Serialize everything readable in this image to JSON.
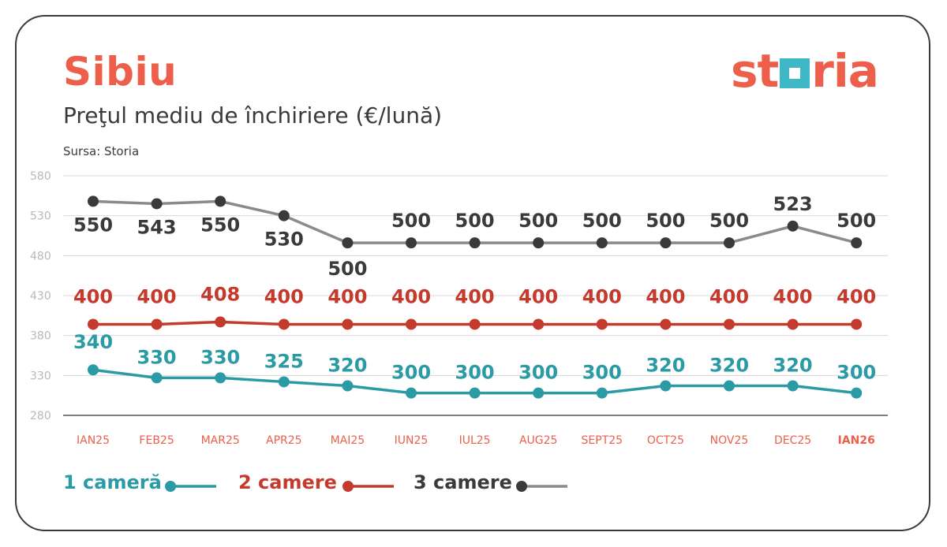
{
  "header": {
    "title": "Sibiu",
    "subtitle": "Preţul mediu de închiriere (€/lună)",
    "source": "Sursa: Storia",
    "logo_text_before": "st",
    "logo_text_after": "ria"
  },
  "colors": {
    "accent": "#ee5f4b",
    "teal": "#2a9aa5",
    "red": "#c43a2c",
    "dark": "#3a3a3a",
    "grey_line": "#8a8a8a",
    "grid": "#d9d9d9"
  },
  "legend": {
    "s1": "1 cameră",
    "s2": "2 camere",
    "s3": "3 camere"
  },
  "chart_data": {
    "type": "line",
    "title": "Preţul mediu de închiriere (€/lună)",
    "xlabel": "",
    "ylabel": "",
    "ylim": [
      280,
      580
    ],
    "yticks": [
      280,
      330,
      380,
      430,
      480,
      530,
      580
    ],
    "categories": [
      "IAN25",
      "FEB25",
      "MAR25",
      "APR25",
      "MAI25",
      "IUN25",
      "IUL25",
      "AUG25",
      "SEPT25",
      "OCT25",
      "NOV25",
      "DEC25",
      "IAN26"
    ],
    "grid": true,
    "legend_position": "bottom-left",
    "series": [
      {
        "name": "1 cameră",
        "values": [
          340,
          330,
          330,
          325,
          320,
          300,
          300,
          300,
          300,
          320,
          320,
          320,
          300
        ],
        "plot_values": [
          337,
          327,
          327,
          322,
          317,
          308,
          308,
          308,
          308,
          317,
          317,
          317,
          308
        ]
      },
      {
        "name": "2 camere",
        "values": [
          400,
          400,
          408,
          400,
          400,
          400,
          400,
          400,
          400,
          400,
          400,
          400,
          400
        ],
        "plot_values": [
          394,
          394,
          397,
          394,
          394,
          394,
          394,
          394,
          394,
          394,
          394,
          394,
          394
        ]
      },
      {
        "name": "3 camere",
        "values": [
          550,
          543,
          550,
          530,
          500,
          500,
          500,
          500,
          500,
          500,
          500,
          523,
          500
        ],
        "plot_values": [
          548,
          545,
          548,
          530,
          496,
          496,
          496,
          496,
          496,
          496,
          496,
          517,
          496
        ]
      }
    ]
  }
}
